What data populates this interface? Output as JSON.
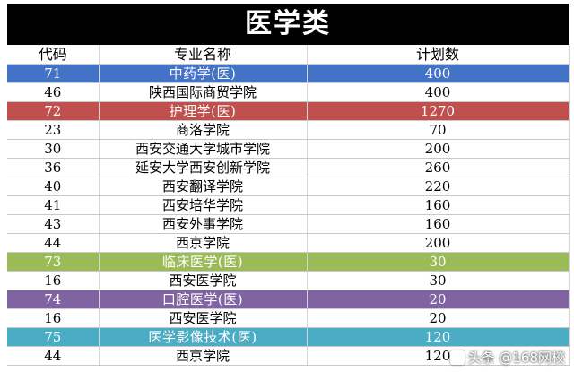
{
  "title": "医学类",
  "columns": [
    "代码",
    "专业名称",
    "计划数"
  ],
  "rows": [
    {
      "code": "71",
      "name": "中药学(医)",
      "plan": "400",
      "category": true,
      "color": "#4472c4"
    },
    {
      "code": "46",
      "name": "陕西国际商贸学院",
      "plan": "400",
      "category": false
    },
    {
      "code": "72",
      "name": "护理学(医)",
      "plan": "1270",
      "category": true,
      "color": "#c0504d"
    },
    {
      "code": "23",
      "name": "商洛学院",
      "plan": "70",
      "category": false
    },
    {
      "code": "30",
      "name": "西安交通大学城市学院",
      "plan": "200",
      "category": false
    },
    {
      "code": "36",
      "name": "延安大学西安创新学院",
      "plan": "260",
      "category": false
    },
    {
      "code": "40",
      "name": "西安翻译学院",
      "plan": "220",
      "category": false
    },
    {
      "code": "41",
      "name": "西安培华学院",
      "plan": "160",
      "category": false
    },
    {
      "code": "43",
      "name": "西安外事学院",
      "plan": "160",
      "category": false
    },
    {
      "code": "44",
      "name": "西京学院",
      "plan": "200",
      "category": false
    },
    {
      "code": "73",
      "name": "临床医学(医)",
      "plan": "30",
      "category": true,
      "color": "#9bbb59"
    },
    {
      "code": "16",
      "name": "西安医学院",
      "plan": "30",
      "category": false
    },
    {
      "code": "74",
      "name": "口腔医学(医)",
      "plan": "20",
      "category": true,
      "color": "#8064a2"
    },
    {
      "code": "16",
      "name": "西安医学院",
      "plan": "20",
      "category": false
    },
    {
      "code": "75",
      "name": "医学影像技术(医)",
      "plan": "120",
      "category": true,
      "color": "#4bacc6"
    },
    {
      "code": "44",
      "name": "西京学院",
      "plan": "120",
      "category": false
    }
  ],
  "watermark": {
    "text": "头条 @168网校",
    "icon": "app-icon"
  }
}
